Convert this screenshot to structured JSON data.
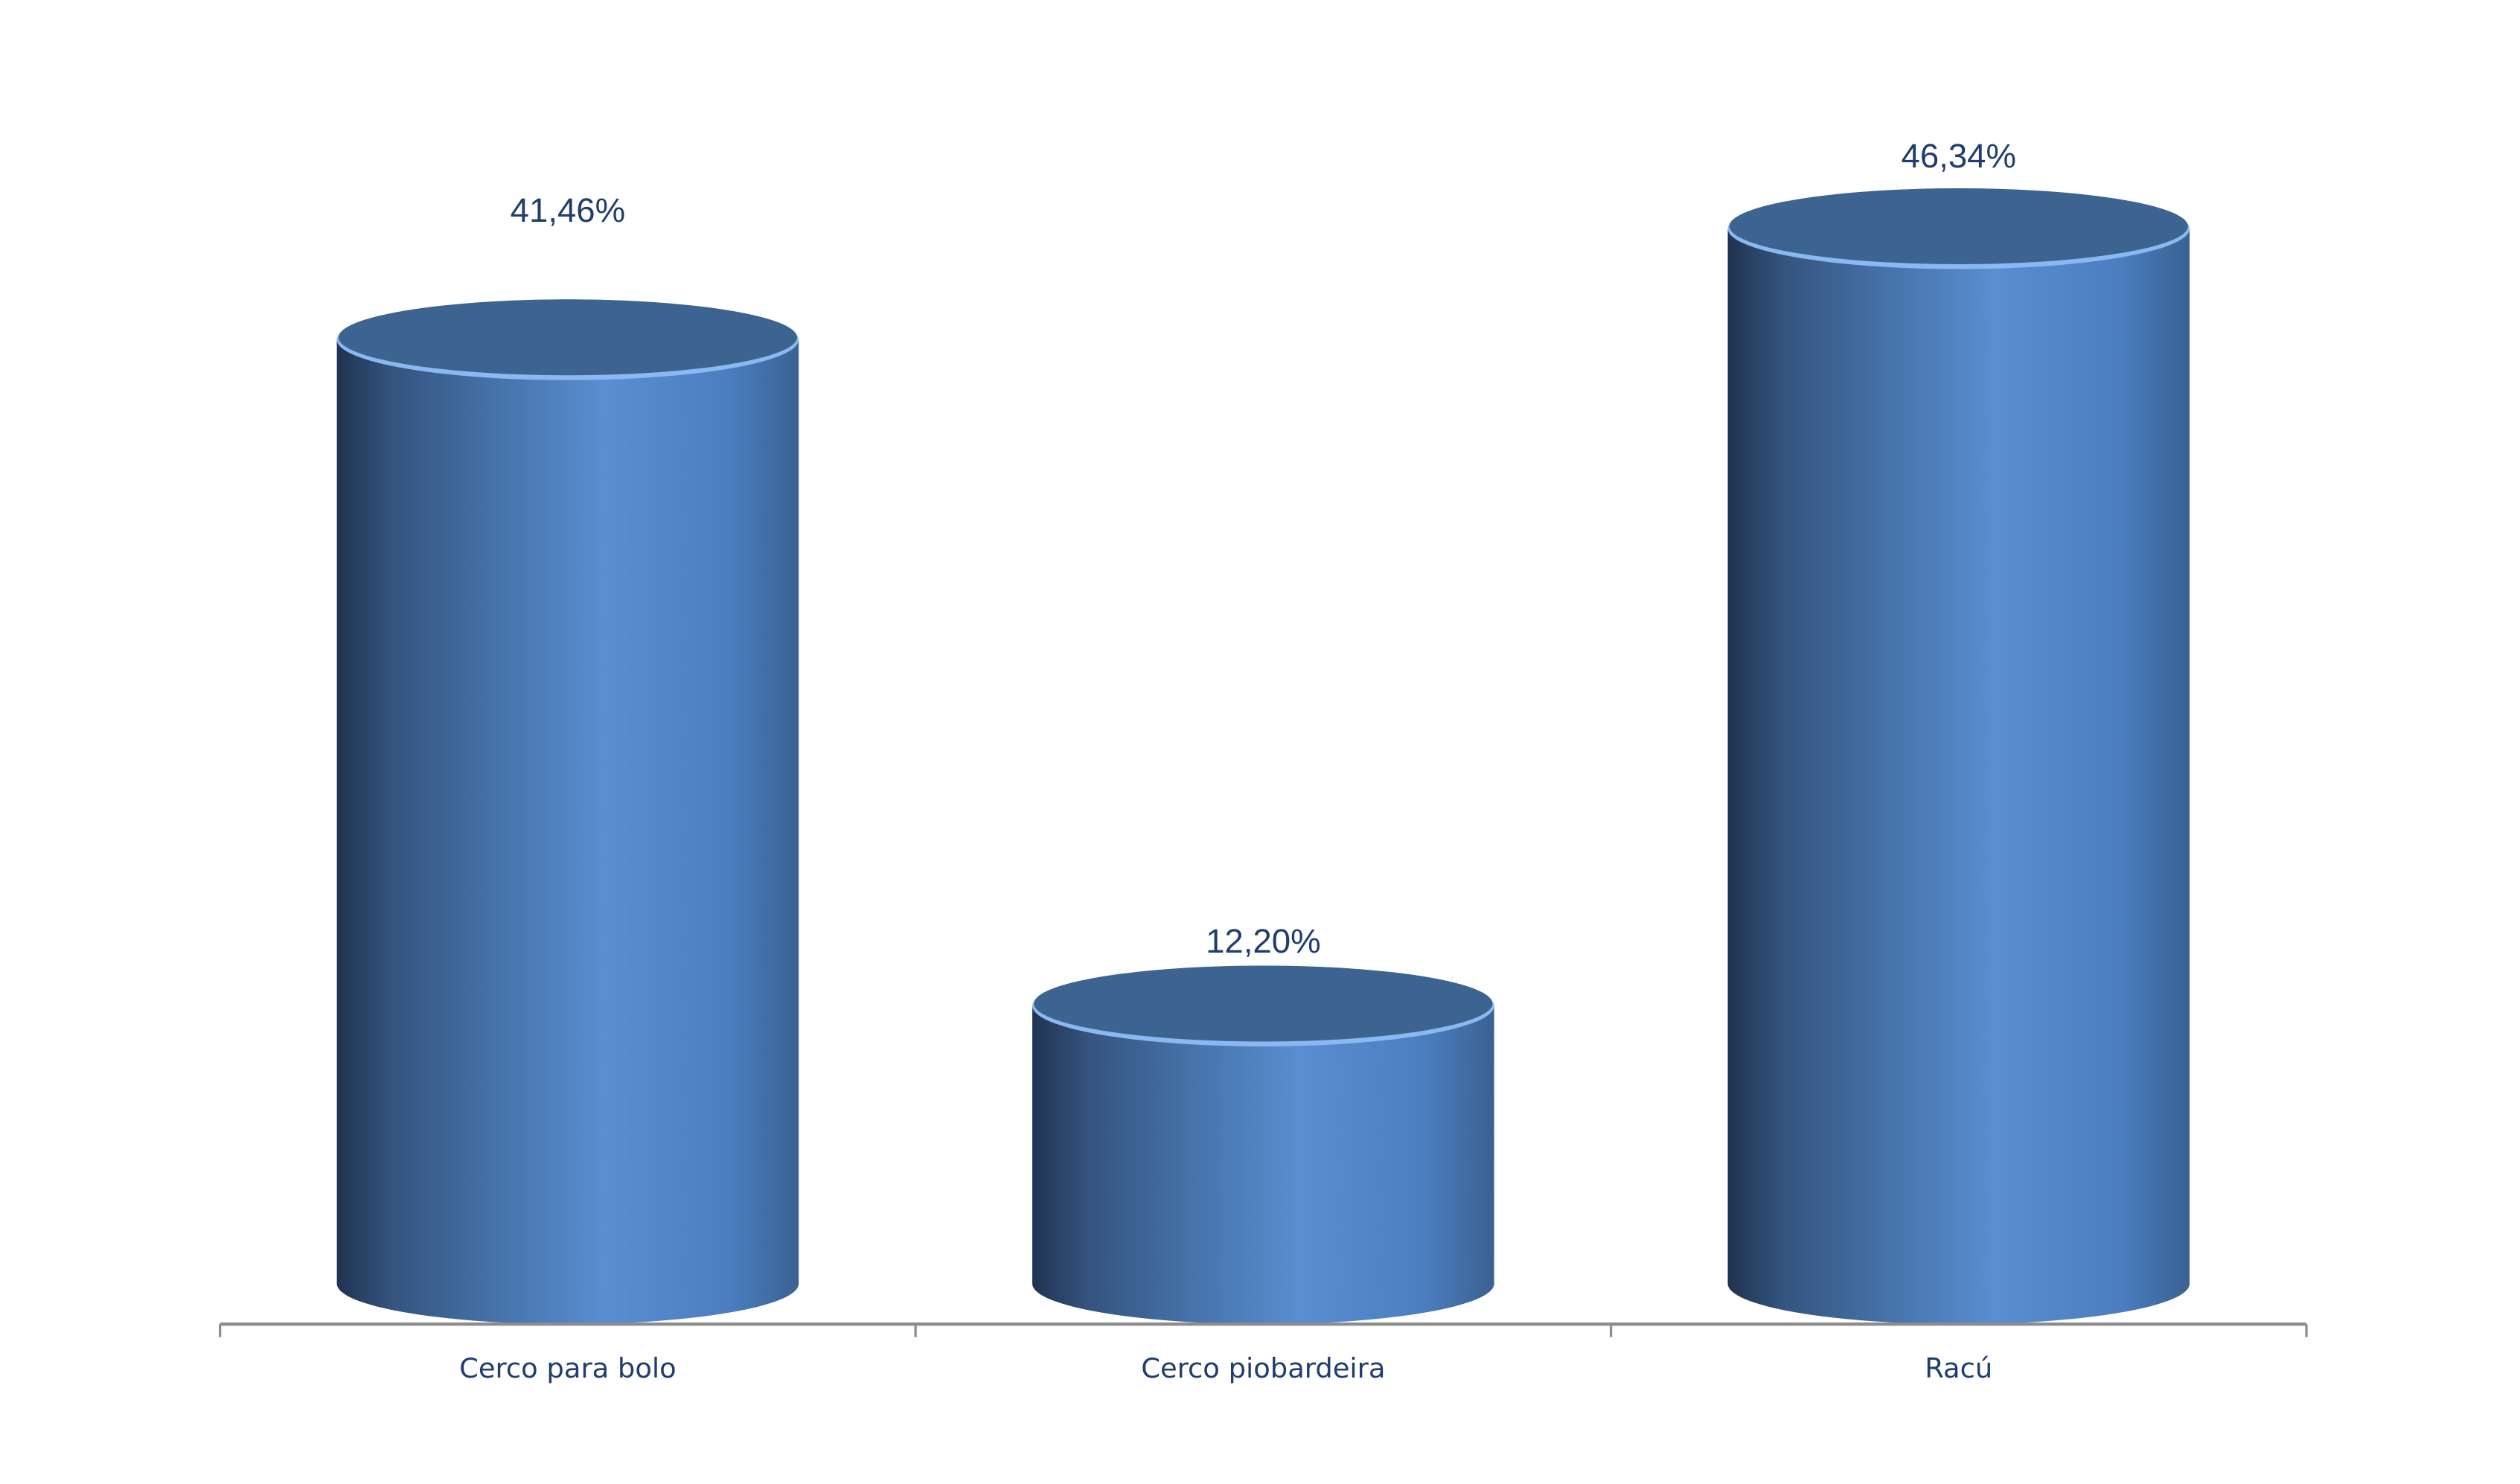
{
  "chart_data": {
    "type": "bar",
    "style": "3d-cylinder",
    "categories": [
      "Cerco para bolo",
      "Cerco piobardeira",
      "Racú"
    ],
    "values": [
      41.46,
      12.2,
      46.34
    ],
    "data_labels": [
      "41,46%",
      "12,20%",
      "46,34%"
    ],
    "title": "",
    "xlabel": "",
    "ylabel": "",
    "ylim": [
      0,
      50
    ],
    "grid": false,
    "legend": "none",
    "colors": {
      "bar_light": "#5a8ed0",
      "bar_dark": "#1f3350",
      "bar_top": "#3d6390",
      "text": "#1f3d6e",
      "axis": "#8c8c8c"
    }
  }
}
